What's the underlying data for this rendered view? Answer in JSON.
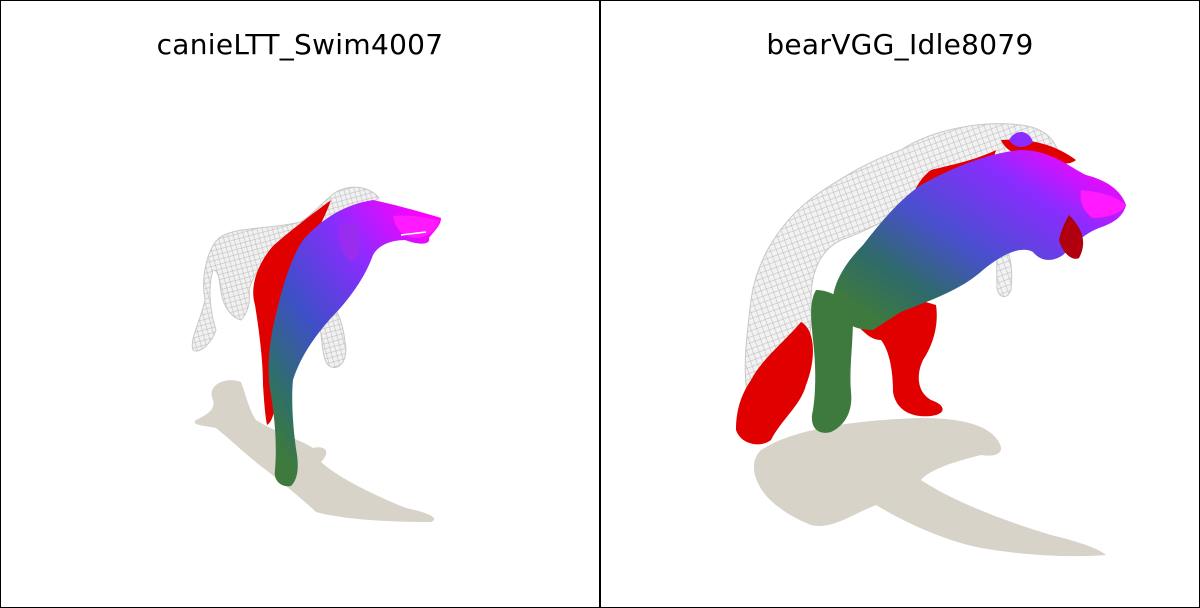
{
  "panels": [
    {
      "title": "canieLTT_Swim4007",
      "subject": "wolf"
    },
    {
      "title": "bearVGG_Idle8079",
      "subject": "bear"
    }
  ],
  "colors": {
    "shadow": "#d7d3c9",
    "mesh": "#e4e4e4",
    "red": "#e10000",
    "magenta": "#ff00ff",
    "purple": "#7a2cff",
    "blue": "#4a50d0",
    "green": "#3e7a3e"
  }
}
